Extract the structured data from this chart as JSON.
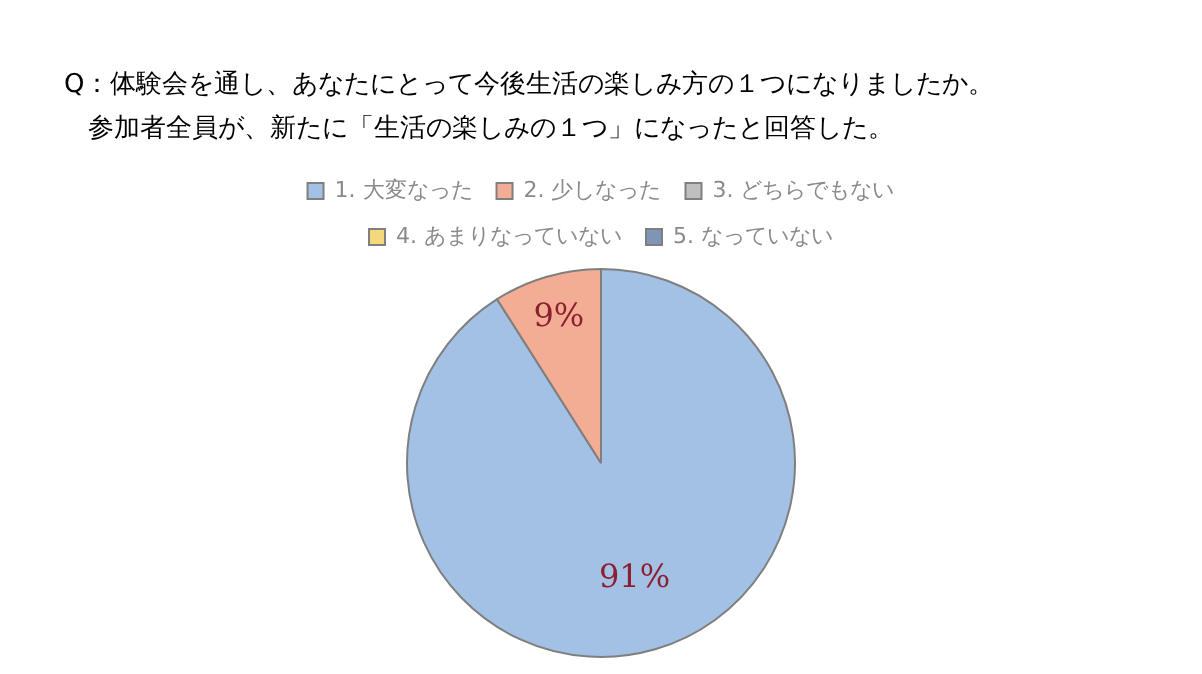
{
  "chart_data": {
    "type": "pie",
    "title": "Q：体験会を通し、あなたにとって今後生活の楽しみ方の１つになりましたか。",
    "subtitle": "参加者全員が、新たに「生活の楽しみの１つ」になったと回答した。",
    "categories": [
      "1. 大変なった",
      "2. 少しなった",
      "3. どちらでもない",
      "4. あまりなっていない",
      "5. なっていない"
    ],
    "values": [
      91,
      9,
      0,
      0,
      0
    ],
    "colors": [
      "#a3c1e5",
      "#f3ad94",
      "#bfbfbf",
      "#f5d77c",
      "#7f95b8"
    ],
    "value_labels": [
      "91%",
      "9%",
      null,
      null,
      null
    ],
    "legend": "top"
  }
}
